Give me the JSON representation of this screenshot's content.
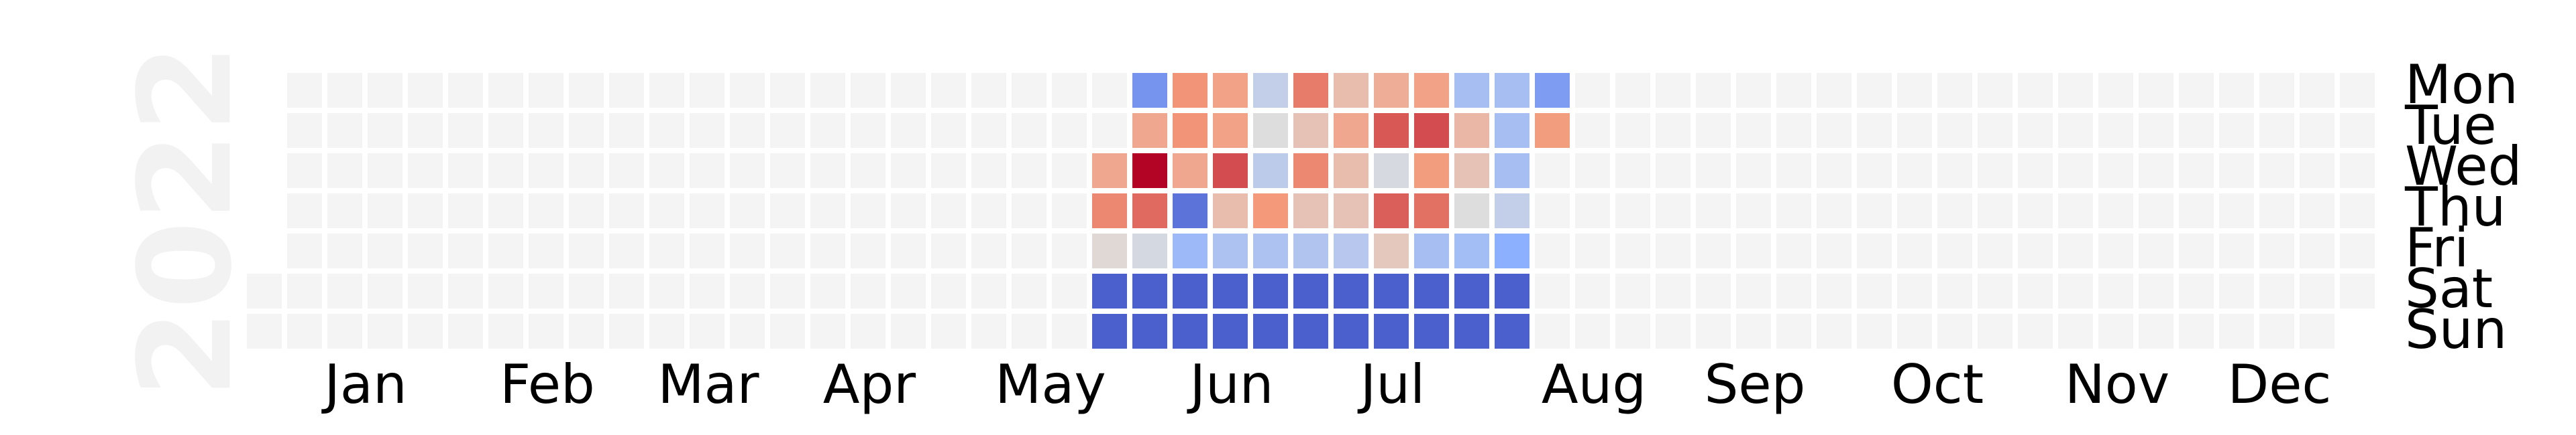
{
  "chart_data": {
    "type": "heatmap",
    "title": "",
    "year_label": "2022",
    "weekday_labels": [
      "Mon",
      "Tue",
      "Wed",
      "Thu",
      "Fri",
      "Sat",
      "Sun"
    ],
    "month_labels": [
      "Jan",
      "Feb",
      "Mar",
      "Apr",
      "May",
      "Jun",
      "Jul",
      "Aug",
      "Sep",
      "Oct",
      "Nov",
      "Dec"
    ],
    "colormap": "coolwarm",
    "empty_color": "#f4f4f4",
    "value_range": [
      0,
      1
    ],
    "grid_start": "2021-12-27",
    "data_weeks": [
      {
        "week_start": "2022-05-23",
        "values": [
          null,
          null,
          0.7,
          0.78,
          0.52,
          0.05,
          0.05
        ]
      },
      {
        "week_start": "2022-05-30",
        "values": [
          0.18,
          0.7,
          1.0,
          0.83,
          0.47,
          0.05,
          0.05
        ]
      },
      {
        "week_start": "2022-06-06",
        "values": [
          0.76,
          0.76,
          0.7,
          0.1,
          0.3,
          0.05,
          0.05
        ]
      },
      {
        "week_start": "2022-06-13",
        "values": [
          0.72,
          0.72,
          0.88,
          0.62,
          0.35,
          0.05,
          0.05
        ]
      },
      {
        "week_start": "2022-06-20",
        "values": [
          0.42,
          0.5,
          0.4,
          0.75,
          0.35,
          0.05,
          0.05
        ]
      },
      {
        "week_start": "2022-06-27",
        "values": [
          0.8,
          0.6,
          0.78,
          0.6,
          0.36,
          0.05,
          0.05
        ]
      },
      {
        "week_start": "2022-07-04",
        "values": [
          0.62,
          0.7,
          0.62,
          0.6,
          0.38,
          0.05,
          0.05
        ]
      },
      {
        "week_start": "2022-07-11",
        "values": [
          0.68,
          0.86,
          0.48,
          0.85,
          0.58,
          0.05,
          0.05
        ]
      },
      {
        "week_start": "2022-07-18",
        "values": [
          0.72,
          0.88,
          0.74,
          0.82,
          0.33,
          0.05,
          0.05
        ]
      },
      {
        "week_start": "2022-07-25",
        "values": [
          0.33,
          0.64,
          0.6,
          0.5,
          0.32,
          0.05,
          0.05
        ]
      },
      {
        "week_start": "2022-08-01",
        "values": [
          0.33,
          0.33,
          0.33,
          0.42,
          0.25,
          0.05,
          0.05
        ]
      },
      {
        "week_start": "2022-08-08",
        "values": [
          0.2,
          0.74,
          null,
          null,
          null,
          null,
          null
        ]
      }
    ]
  }
}
